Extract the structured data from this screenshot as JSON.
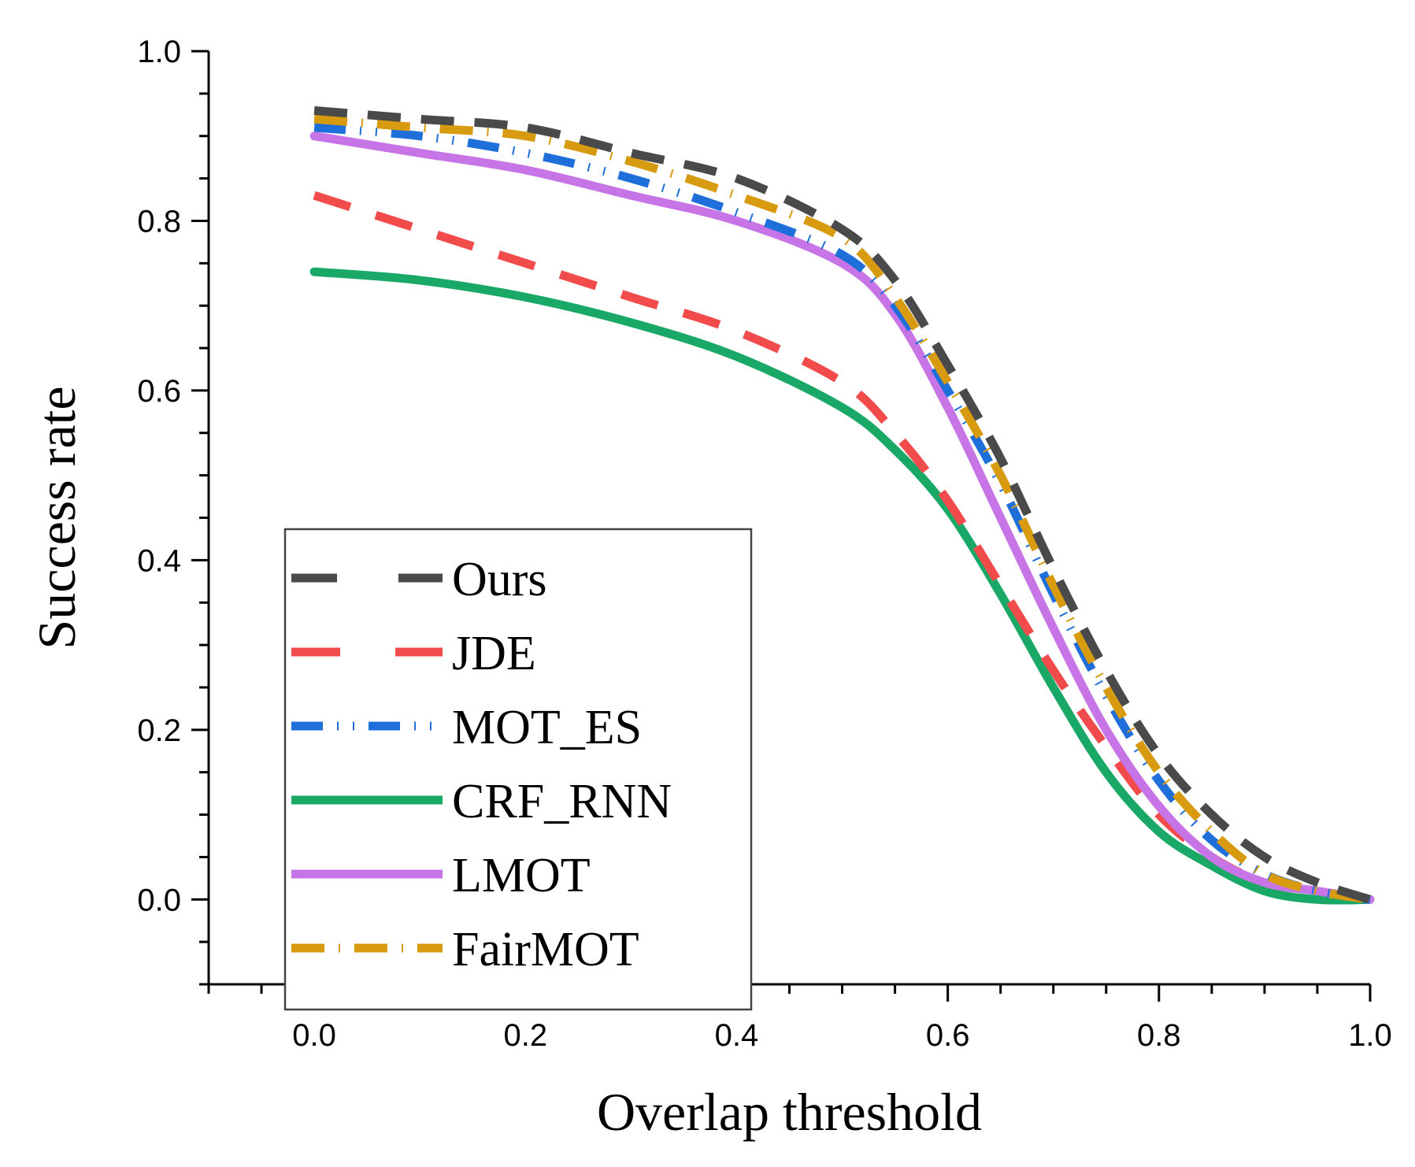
{
  "chart_data": {
    "type": "line",
    "xlabel": "Overlap threshold",
    "ylabel": "Success rate",
    "xlim": [
      -0.1,
      1.0
    ],
    "ylim": [
      -0.1,
      1.0
    ],
    "xticks": [
      "0.0",
      "0.2",
      "0.4",
      "0.6",
      "0.8",
      "1.0"
    ],
    "yticks": [
      "0.0",
      "0.2",
      "0.4",
      "0.6",
      "0.8",
      "1.0"
    ],
    "legend_position": "lower-left",
    "x": [
      0.0,
      0.1,
      0.2,
      0.3,
      0.4,
      0.5,
      0.55,
      0.6,
      0.65,
      0.7,
      0.75,
      0.8,
      0.85,
      0.9,
      0.95,
      1.0
    ],
    "series": [
      {
        "name": "Ours",
        "color": "#4a4a4a",
        "dash": "long-dash",
        "values": [
          0.93,
          0.92,
          0.91,
          0.88,
          0.85,
          0.79,
          0.73,
          0.63,
          0.52,
          0.39,
          0.27,
          0.17,
          0.1,
          0.05,
          0.02,
          0.0
        ]
      },
      {
        "name": "JDE",
        "color": "#f24b4b",
        "dash": "dash",
        "values": [
          0.83,
          0.79,
          0.75,
          0.71,
          0.67,
          0.61,
          0.55,
          0.47,
          0.37,
          0.27,
          0.18,
          0.1,
          0.05,
          0.02,
          0.01,
          0.0
        ]
      },
      {
        "name": "MOT_ES",
        "color": "#1f6fdb",
        "dash": "dash-dot-dot",
        "values": [
          0.91,
          0.9,
          0.88,
          0.85,
          0.81,
          0.76,
          0.7,
          0.6,
          0.49,
          0.36,
          0.24,
          0.14,
          0.07,
          0.03,
          0.01,
          0.0
        ]
      },
      {
        "name": "CRF_RNN",
        "color": "#19a866",
        "dash": "solid",
        "values": [
          0.74,
          0.73,
          0.71,
          0.68,
          0.64,
          0.58,
          0.53,
          0.46,
          0.36,
          0.25,
          0.15,
          0.08,
          0.04,
          0.01,
          0.0,
          0.0
        ]
      },
      {
        "name": "LMOT",
        "color": "#c774e6",
        "dash": "solid",
        "values": [
          0.9,
          0.88,
          0.86,
          0.83,
          0.8,
          0.75,
          0.69,
          0.58,
          0.45,
          0.32,
          0.2,
          0.11,
          0.05,
          0.02,
          0.01,
          0.0
        ]
      },
      {
        "name": "FairMOT",
        "color": "#d89a0e",
        "dash": "dash-dot",
        "values": [
          0.92,
          0.91,
          0.9,
          0.87,
          0.83,
          0.78,
          0.71,
          0.61,
          0.5,
          0.37,
          0.25,
          0.15,
          0.08,
          0.03,
          0.01,
          0.0
        ]
      }
    ]
  }
}
